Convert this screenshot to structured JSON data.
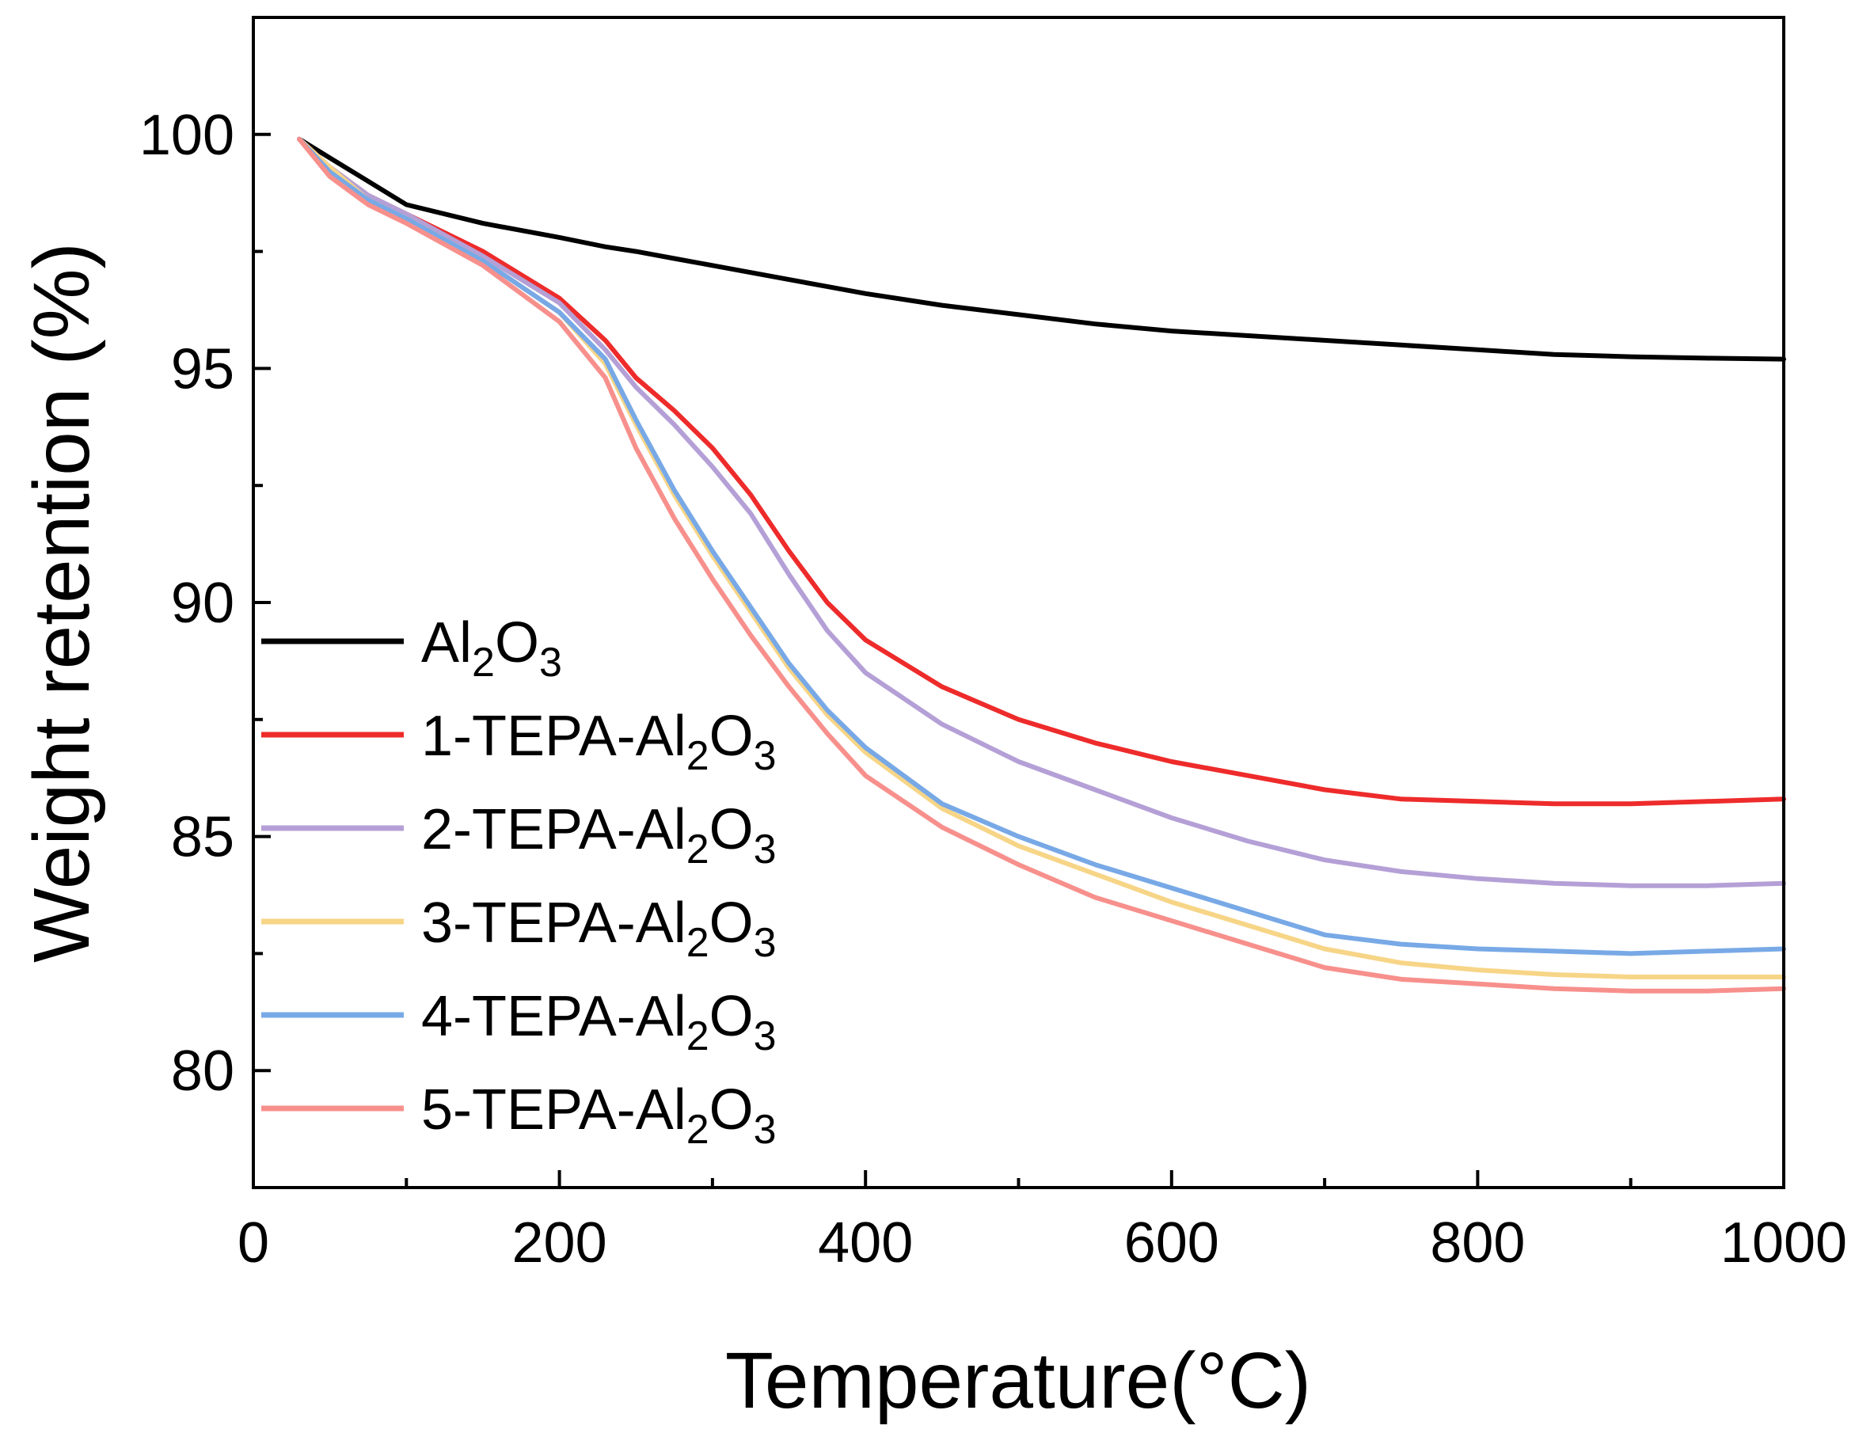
{
  "chart_data": {
    "type": "line",
    "title": "",
    "xlabel": "Temperature(°C)",
    "ylabel": "Weight retention (%)",
    "xlim": [
      0,
      1000
    ],
    "ylim": [
      77.5,
      102.5
    ],
    "xticks": [
      0,
      200,
      400,
      600,
      800,
      1000
    ],
    "xtick_labels": [
      "0",
      "200",
      "400",
      "600",
      "800",
      "1000"
    ],
    "yticks": [
      80,
      85,
      90,
      95,
      100
    ],
    "ytick_labels": [
      "80",
      "85",
      "90",
      "95",
      "100"
    ],
    "x": [
      30,
      50,
      75,
      100,
      150,
      200,
      230,
      250,
      275,
      300,
      325,
      350,
      375,
      400,
      450,
      500,
      550,
      600,
      650,
      700,
      750,
      800,
      850,
      900,
      950,
      1000
    ],
    "series": [
      {
        "name": "Al2O3",
        "label_base": "Al",
        "sub1": "2",
        "mid": "O",
        "sub2": "3",
        "color": "#000000",
        "values": [
          99.9,
          99.5,
          99.0,
          98.5,
          98.1,
          97.8,
          97.6,
          97.5,
          97.35,
          97.2,
          97.05,
          96.9,
          96.75,
          96.6,
          96.35,
          96.15,
          95.95,
          95.8,
          95.7,
          95.6,
          95.5,
          95.4,
          95.3,
          95.25,
          95.22,
          95.2
        ]
      },
      {
        "name": "1-TEPA-Al2O3",
        "label_base": "1-TEPA-Al",
        "sub1": "2",
        "mid": "O",
        "sub2": "3",
        "color": "#ee2b2b",
        "values": [
          99.9,
          99.3,
          98.7,
          98.3,
          97.5,
          96.5,
          95.6,
          94.8,
          94.1,
          93.3,
          92.3,
          91.1,
          90.0,
          89.2,
          88.2,
          87.5,
          87.0,
          86.6,
          86.3,
          86.0,
          85.8,
          85.75,
          85.7,
          85.7,
          85.75,
          85.8
        ]
      },
      {
        "name": "2-TEPA-Al2O3",
        "label_base": "2-TEPA-Al",
        "sub1": "2",
        "mid": "O",
        "sub2": "3",
        "color": "#b4a0d6",
        "values": [
          99.9,
          99.3,
          98.7,
          98.3,
          97.4,
          96.4,
          95.4,
          94.6,
          93.8,
          92.9,
          91.9,
          90.6,
          89.4,
          88.5,
          87.4,
          86.6,
          86.0,
          85.4,
          84.9,
          84.5,
          84.25,
          84.1,
          84.0,
          83.95,
          83.95,
          84.0
        ]
      },
      {
        "name": "3-TEPA-Al2O3",
        "label_base": "3-TEPA-Al",
        "sub1": "2",
        "mid": "O",
        "sub2": "3",
        "color": "#f7d587",
        "values": [
          99.9,
          99.3,
          98.6,
          98.2,
          97.3,
          96.2,
          95.1,
          93.8,
          92.3,
          91.0,
          89.8,
          88.6,
          87.6,
          86.8,
          85.6,
          84.8,
          84.2,
          83.6,
          83.1,
          82.6,
          82.3,
          82.15,
          82.05,
          82.0,
          82.0,
          82.0
        ]
      },
      {
        "name": "4-TEPA-Al2O3",
        "label_base": "4-TEPA-Al",
        "sub1": "2",
        "mid": "O",
        "sub2": "3",
        "color": "#78a9e6",
        "values": [
          99.9,
          99.2,
          98.6,
          98.2,
          97.3,
          96.2,
          95.2,
          93.9,
          92.4,
          91.1,
          89.9,
          88.7,
          87.7,
          86.9,
          85.7,
          85.0,
          84.4,
          83.9,
          83.4,
          82.9,
          82.7,
          82.6,
          82.55,
          82.5,
          82.55,
          82.6
        ]
      },
      {
        "name": "5-TEPA-Al2O3",
        "label_base": "5-TEPA-Al",
        "sub1": "2",
        "mid": "O",
        "sub2": "3",
        "color": "#f7908c",
        "values": [
          99.9,
          99.1,
          98.5,
          98.1,
          97.2,
          96.0,
          94.8,
          93.3,
          91.8,
          90.5,
          89.3,
          88.2,
          87.2,
          86.3,
          85.2,
          84.4,
          83.7,
          83.2,
          82.7,
          82.2,
          81.95,
          81.85,
          81.75,
          81.7,
          81.7,
          81.75
        ]
      }
    ],
    "legend": {
      "position": "left-middle"
    }
  }
}
